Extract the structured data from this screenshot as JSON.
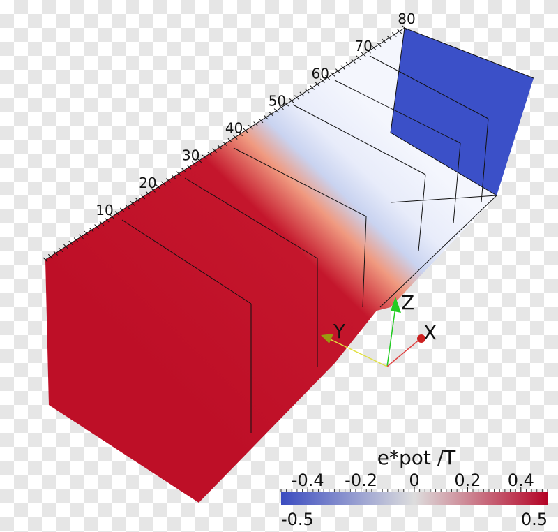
{
  "axis_labels": [
    10,
    20,
    30,
    40,
    50,
    60,
    70,
    80
  ],
  "triad": {
    "x": "X",
    "y": "Y",
    "z": "Z"
  },
  "colorbar": {
    "title": "e*pot /T",
    "ticks": [
      -0.4,
      -0.2,
      0,
      0.2,
      0.4
    ],
    "range": [
      -0.5,
      0.5
    ]
  }
}
